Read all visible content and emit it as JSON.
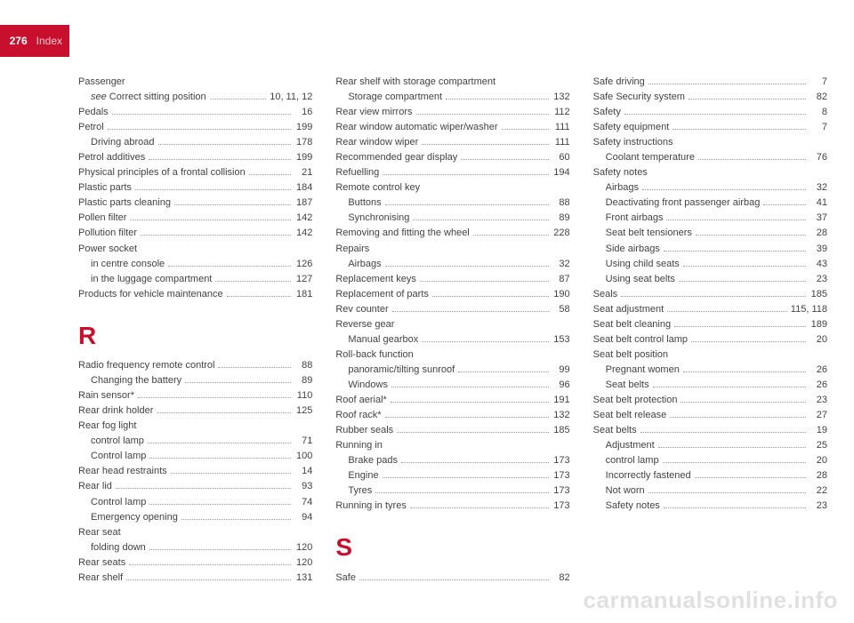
{
  "header": {
    "page_number": "276",
    "section": "Index"
  },
  "watermark": "carmanualsonline.info",
  "colors": {
    "accent": "#c8102e",
    "text": "#424242",
    "dots": "#9a9a9a",
    "watermark": "rgba(0,0,0,0.12)"
  },
  "letters": {
    "R": "R",
    "S": "S"
  },
  "col1": [
    {
      "t": "head",
      "label": "Passenger"
    },
    {
      "t": "sub",
      "label": "see Correct sitting position",
      "page": "10, 11, 12",
      "italic_prefix": "see "
    },
    {
      "t": "e",
      "label": "Pedals",
      "page": "16"
    },
    {
      "t": "e",
      "label": "Petrol",
      "page": "199"
    },
    {
      "t": "sub",
      "label": "Driving abroad",
      "page": "178"
    },
    {
      "t": "e",
      "label": "Petrol additives",
      "page": "199"
    },
    {
      "t": "e",
      "label": "Physical principles of a frontal collision",
      "page": "21"
    },
    {
      "t": "e",
      "label": "Plastic parts",
      "page": "184"
    },
    {
      "t": "e",
      "label": "Plastic parts cleaning",
      "page": "187"
    },
    {
      "t": "e",
      "label": "Pollen filter",
      "page": "142"
    },
    {
      "t": "e",
      "label": "Pollution filter",
      "page": "142"
    },
    {
      "t": "head",
      "label": "Power socket"
    },
    {
      "t": "sub",
      "label": "in centre console",
      "page": "126"
    },
    {
      "t": "sub",
      "label": "in the luggage compartment",
      "page": "127"
    },
    {
      "t": "e",
      "label": "Products for vehicle maintenance",
      "page": "181"
    },
    {
      "t": "letter",
      "key": "R"
    },
    {
      "t": "e",
      "label": "Radio frequency remote control",
      "page": "88"
    },
    {
      "t": "sub",
      "label": "Changing the battery",
      "page": "89"
    },
    {
      "t": "e",
      "label": "Rain sensor*",
      "page": "110"
    },
    {
      "t": "e",
      "label": "Rear drink holder",
      "page": "125"
    },
    {
      "t": "head",
      "label": "Rear fog light"
    },
    {
      "t": "sub",
      "label": "control lamp",
      "page": "71"
    },
    {
      "t": "sub",
      "label": "Control lamp",
      "page": "100"
    },
    {
      "t": "e",
      "label": "Rear head restraints",
      "page": "14"
    },
    {
      "t": "e",
      "label": "Rear lid",
      "page": "93"
    },
    {
      "t": "sub",
      "label": "Control lamp",
      "page": "74"
    },
    {
      "t": "sub",
      "label": "Emergency opening",
      "page": "94"
    },
    {
      "t": "head",
      "label": "Rear seat"
    },
    {
      "t": "sub",
      "label": "folding down",
      "page": "120"
    },
    {
      "t": "e",
      "label": "Rear seats",
      "page": "120"
    }
  ],
  "col2": [
    {
      "t": "e",
      "label": "Rear shelf",
      "page": "131"
    },
    {
      "t": "head",
      "label": "Rear shelf with storage compartment"
    },
    {
      "t": "sub",
      "label": "Storage compartment",
      "page": "132"
    },
    {
      "t": "e",
      "label": "Rear view mirrors",
      "page": "112"
    },
    {
      "t": "e",
      "label": "Rear window automatic wiper/washer",
      "page": "111"
    },
    {
      "t": "e",
      "label": "Rear window wiper",
      "page": "111"
    },
    {
      "t": "e",
      "label": "Recommended gear display",
      "page": "60"
    },
    {
      "t": "e",
      "label": "Refuelling",
      "page": "194"
    },
    {
      "t": "head",
      "label": "Remote control key"
    },
    {
      "t": "sub",
      "label": "Buttons",
      "page": "88"
    },
    {
      "t": "sub",
      "label": "Synchronising",
      "page": "89"
    },
    {
      "t": "e",
      "label": "Removing and fitting the wheel",
      "page": "228"
    },
    {
      "t": "head",
      "label": "Repairs"
    },
    {
      "t": "sub",
      "label": "Airbags",
      "page": "32"
    },
    {
      "t": "e",
      "label": "Replacement keys",
      "page": "87"
    },
    {
      "t": "e",
      "label": "Replacement of parts",
      "page": "190"
    },
    {
      "t": "e",
      "label": "Rev counter",
      "page": "58"
    },
    {
      "t": "head",
      "label": "Reverse gear"
    },
    {
      "t": "sub",
      "label": "Manual gearbox",
      "page": "153"
    },
    {
      "t": "head",
      "label": "Roll-back function"
    },
    {
      "t": "sub",
      "label": "panoramic/tilting sunroof",
      "page": "99"
    },
    {
      "t": "sub",
      "label": "Windows",
      "page": "96"
    },
    {
      "t": "e",
      "label": "Roof aerial*",
      "page": "191"
    },
    {
      "t": "e",
      "label": "Roof rack*",
      "page": "132"
    },
    {
      "t": "e",
      "label": "Rubber seals",
      "page": "185"
    },
    {
      "t": "head",
      "label": "Running in"
    },
    {
      "t": "sub",
      "label": "Brake pads",
      "page": "173"
    },
    {
      "t": "sub",
      "label": "Engine",
      "page": "173"
    },
    {
      "t": "sub",
      "label": "Tyres",
      "page": "173"
    },
    {
      "t": "e",
      "label": "Running in tyres",
      "page": "173"
    }
  ],
  "col3": [
    {
      "t": "letter",
      "key": "S"
    },
    {
      "t": "e",
      "label": "Safe",
      "page": "82"
    },
    {
      "t": "e",
      "label": "Safe driving",
      "page": "7"
    },
    {
      "t": "e",
      "label": "Safe Security system",
      "page": "82"
    },
    {
      "t": "e",
      "label": "Safety",
      "page": "8"
    },
    {
      "t": "e",
      "label": "Safety equipment",
      "page": "7"
    },
    {
      "t": "head",
      "label": "Safety instructions"
    },
    {
      "t": "sub",
      "label": "Coolant temperature",
      "page": "76"
    },
    {
      "t": "head",
      "label": "Safety notes"
    },
    {
      "t": "sub",
      "label": "Airbags",
      "page": "32"
    },
    {
      "t": "sub",
      "label": "Deactivating front passenger airbag",
      "page": "41"
    },
    {
      "t": "sub",
      "label": "Front airbags",
      "page": "37"
    },
    {
      "t": "sub",
      "label": "Seat belt tensioners",
      "page": "28"
    },
    {
      "t": "sub",
      "label": "Side airbags",
      "page": "39"
    },
    {
      "t": "sub",
      "label": "Using child seats",
      "page": "43"
    },
    {
      "t": "sub",
      "label": "Using seat belts",
      "page": "23"
    },
    {
      "t": "e",
      "label": "Seals",
      "page": "185"
    },
    {
      "t": "e",
      "label": "Seat adjustment",
      "page": "115, 118"
    },
    {
      "t": "e",
      "label": "Seat belt cleaning",
      "page": "189"
    },
    {
      "t": "e",
      "label": "Seat belt control lamp",
      "page": "20"
    },
    {
      "t": "head",
      "label": "Seat belt position"
    },
    {
      "t": "sub",
      "label": "Pregnant women",
      "page": "26"
    },
    {
      "t": "sub",
      "label": "Seat belts",
      "page": "26"
    },
    {
      "t": "e",
      "label": "Seat belt protection",
      "page": "23"
    },
    {
      "t": "e",
      "label": "Seat belt release",
      "page": "27"
    },
    {
      "t": "e",
      "label": "Seat belts",
      "page": "19"
    },
    {
      "t": "sub",
      "label": "Adjustment",
      "page": "25"
    },
    {
      "t": "sub",
      "label": "control lamp",
      "page": "20"
    },
    {
      "t": "sub",
      "label": "Incorrectly fastened",
      "page": "28"
    },
    {
      "t": "sub",
      "label": "Not worn",
      "page": "22"
    },
    {
      "t": "sub",
      "label": "Safety notes",
      "page": "23"
    }
  ]
}
